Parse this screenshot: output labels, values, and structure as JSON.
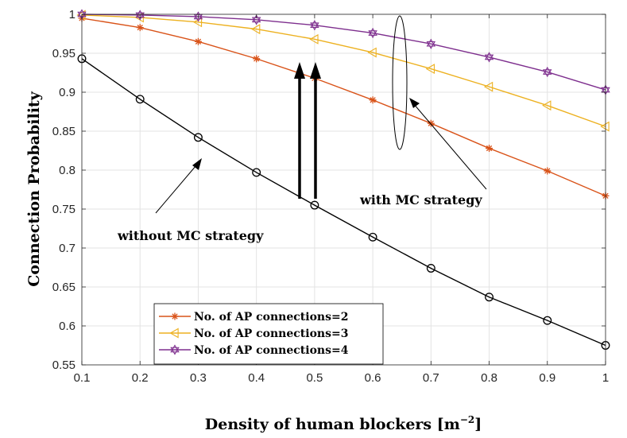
{
  "chart_data": {
    "type": "line",
    "title": "",
    "xlabel": "Density of human blockers [m",
    "xlabel_sup": "−2",
    "xlabel_suffix": "]",
    "ylabel": "Connection Probability",
    "xlim": [
      0.1,
      1
    ],
    "ylim": [
      0.55,
      1
    ],
    "grid": true,
    "legend_position": "bottom-left",
    "x": [
      0.1,
      0.2,
      0.3,
      0.4,
      0.5,
      0.6,
      0.7,
      0.8,
      0.9,
      1.0
    ],
    "xticks": [
      "0.1",
      "0.2",
      "0.3",
      "0.4",
      "0.5",
      "0.6",
      "0.7",
      "0.8",
      "0.9",
      "1"
    ],
    "yticks": [
      "0.55",
      "0.6",
      "0.65",
      "0.7",
      "0.75",
      "0.8",
      "0.85",
      "0.9",
      "0.95",
      "1"
    ],
    "series": [
      {
        "name": "without MC",
        "color": "#000000",
        "marker": "circle",
        "legend": false,
        "values": [
          0.943,
          0.891,
          0.842,
          0.797,
          0.755,
          0.714,
          0.674,
          0.637,
          0.607,
          0.575
        ]
      },
      {
        "name": "No. of AP connections=2",
        "color": "#D95319",
        "marker": "asterisk",
        "legend": true,
        "values": [
          0.995,
          0.983,
          0.965,
          0.943,
          0.918,
          0.89,
          0.86,
          0.828,
          0.799,
          0.767
        ]
      },
      {
        "name": "No. of AP connections=3",
        "color": "#EDB120",
        "marker": "triangle-left",
        "legend": true,
        "values": [
          0.999,
          0.996,
          0.99,
          0.981,
          0.968,
          0.951,
          0.93,
          0.907,
          0.883,
          0.856
        ]
      },
      {
        "name": "No. of AP connections=4",
        "color": "#7E2F8E",
        "marker": "hexagram",
        "legend": true,
        "values": [
          1.0,
          0.999,
          0.997,
          0.993,
          0.986,
          0.976,
          0.962,
          0.945,
          0.926,
          0.903
        ]
      }
    ],
    "annotations": {
      "with_mc": "with MC strategy",
      "without_mc": "without MC strategy"
    }
  }
}
